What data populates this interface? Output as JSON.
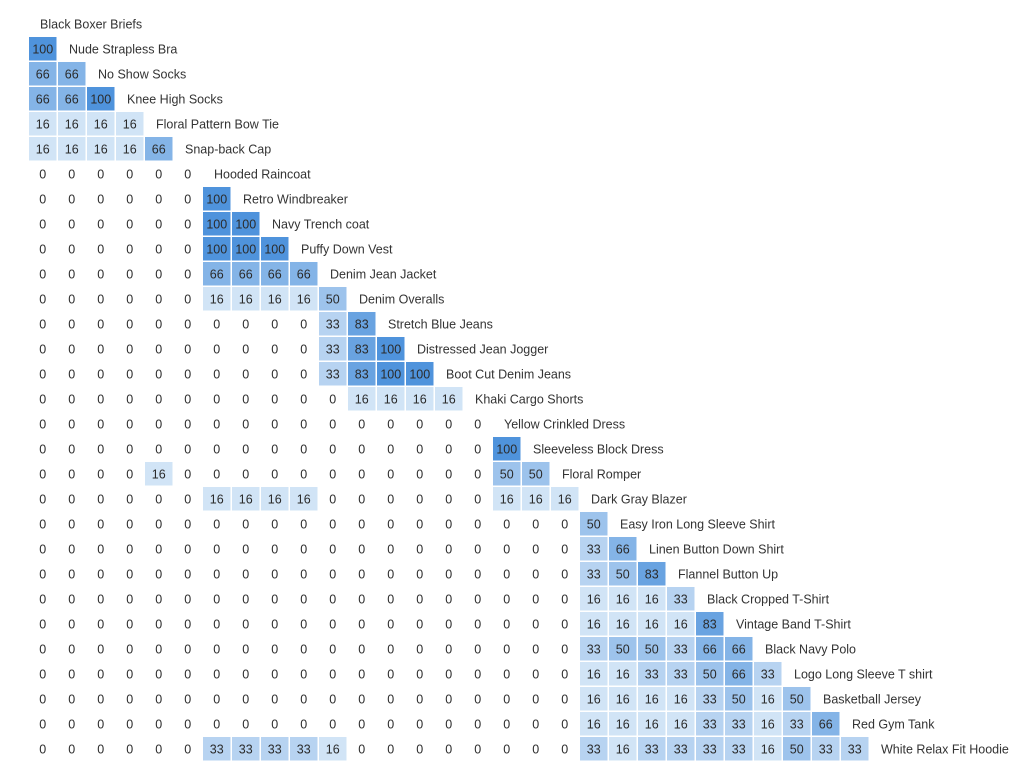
{
  "chart_data": {
    "type": "heatmap",
    "title": "",
    "xlabel": "",
    "ylabel": "",
    "shape": "lower-triangular",
    "range": [
      0,
      100
    ],
    "colors": {
      "low": "#eaf3fb",
      "high": "#4f93dc",
      "zero_bg": "#ffffff",
      "text": "#2b2b2b",
      "label": "#333333"
    },
    "rows": [
      {
        "label": "Black Boxer Briefs",
        "values": []
      },
      {
        "label": "Nude Strapless Bra",
        "values": [
          100
        ]
      },
      {
        "label": "No Show Socks",
        "values": [
          66,
          66
        ]
      },
      {
        "label": "Knee High Socks",
        "values": [
          66,
          66,
          100
        ]
      },
      {
        "label": "Floral Pattern Bow Tie",
        "values": [
          16,
          16,
          16,
          16
        ]
      },
      {
        "label": "Snap-back Cap",
        "values": [
          16,
          16,
          16,
          16,
          66
        ]
      },
      {
        "label": "Hooded Raincoat",
        "values": [
          0,
          0,
          0,
          0,
          0,
          0
        ]
      },
      {
        "label": "Retro Windbreaker",
        "values": [
          0,
          0,
          0,
          0,
          0,
          0,
          100
        ]
      },
      {
        "label": "Navy Trench coat",
        "values": [
          0,
          0,
          0,
          0,
          0,
          0,
          100,
          100
        ]
      },
      {
        "label": "Puffy Down Vest",
        "values": [
          0,
          0,
          0,
          0,
          0,
          0,
          100,
          100,
          100
        ]
      },
      {
        "label": "Denim Jean Jacket",
        "values": [
          0,
          0,
          0,
          0,
          0,
          0,
          66,
          66,
          66,
          66
        ]
      },
      {
        "label": "Denim Overalls",
        "values": [
          0,
          0,
          0,
          0,
          0,
          0,
          16,
          16,
          16,
          16,
          50
        ]
      },
      {
        "label": "Stretch Blue Jeans",
        "values": [
          0,
          0,
          0,
          0,
          0,
          0,
          0,
          0,
          0,
          0,
          33,
          83
        ]
      },
      {
        "label": "Distressed Jean Jogger",
        "values": [
          0,
          0,
          0,
          0,
          0,
          0,
          0,
          0,
          0,
          0,
          33,
          83,
          100
        ]
      },
      {
        "label": "Boot Cut Denim Jeans",
        "values": [
          0,
          0,
          0,
          0,
          0,
          0,
          0,
          0,
          0,
          0,
          33,
          83,
          100,
          100
        ]
      },
      {
        "label": "Khaki Cargo Shorts",
        "values": [
          0,
          0,
          0,
          0,
          0,
          0,
          0,
          0,
          0,
          0,
          0,
          16,
          16,
          16,
          16
        ]
      },
      {
        "label": "Yellow Crinkled Dress",
        "values": [
          0,
          0,
          0,
          0,
          0,
          0,
          0,
          0,
          0,
          0,
          0,
          0,
          0,
          0,
          0,
          0
        ]
      },
      {
        "label": "Sleeveless Block Dress",
        "values": [
          0,
          0,
          0,
          0,
          0,
          0,
          0,
          0,
          0,
          0,
          0,
          0,
          0,
          0,
          0,
          0,
          100
        ]
      },
      {
        "label": "Floral Romper",
        "values": [
          0,
          0,
          0,
          0,
          16,
          0,
          0,
          0,
          0,
          0,
          0,
          0,
          0,
          0,
          0,
          0,
          50,
          50
        ]
      },
      {
        "label": "Dark Gray Blazer",
        "values": [
          0,
          0,
          0,
          0,
          0,
          0,
          16,
          16,
          16,
          16,
          0,
          0,
          0,
          0,
          0,
          0,
          16,
          16,
          16
        ]
      },
      {
        "label": "Easy Iron Long Sleeve Shirt",
        "values": [
          0,
          0,
          0,
          0,
          0,
          0,
          0,
          0,
          0,
          0,
          0,
          0,
          0,
          0,
          0,
          0,
          0,
          0,
          0,
          50
        ]
      },
      {
        "label": "Linen Button Down Shirt",
        "values": [
          0,
          0,
          0,
          0,
          0,
          0,
          0,
          0,
          0,
          0,
          0,
          0,
          0,
          0,
          0,
          0,
          0,
          0,
          0,
          33,
          66
        ]
      },
      {
        "label": "Flannel Button Up",
        "values": [
          0,
          0,
          0,
          0,
          0,
          0,
          0,
          0,
          0,
          0,
          0,
          0,
          0,
          0,
          0,
          0,
          0,
          0,
          0,
          33,
          50,
          83
        ]
      },
      {
        "label": "Black Cropped T-Shirt",
        "values": [
          0,
          0,
          0,
          0,
          0,
          0,
          0,
          0,
          0,
          0,
          0,
          0,
          0,
          0,
          0,
          0,
          0,
          0,
          0,
          16,
          16,
          16,
          33
        ]
      },
      {
        "label": "Vintage Band T-Shirt",
        "values": [
          0,
          0,
          0,
          0,
          0,
          0,
          0,
          0,
          0,
          0,
          0,
          0,
          0,
          0,
          0,
          0,
          0,
          0,
          0,
          16,
          16,
          16,
          16,
          83
        ]
      },
      {
        "label": "Black Navy Polo",
        "values": [
          0,
          0,
          0,
          0,
          0,
          0,
          0,
          0,
          0,
          0,
          0,
          0,
          0,
          0,
          0,
          0,
          0,
          0,
          0,
          33,
          50,
          50,
          33,
          66,
          66
        ]
      },
      {
        "label": "Logo Long Sleeve T shirt",
        "values": [
          0,
          0,
          0,
          0,
          0,
          0,
          0,
          0,
          0,
          0,
          0,
          0,
          0,
          0,
          0,
          0,
          0,
          0,
          0,
          16,
          16,
          33,
          33,
          50,
          66,
          33
        ]
      },
      {
        "label": "Basketball Jersey",
        "values": [
          0,
          0,
          0,
          0,
          0,
          0,
          0,
          0,
          0,
          0,
          0,
          0,
          0,
          0,
          0,
          0,
          0,
          0,
          0,
          16,
          16,
          16,
          16,
          33,
          50,
          16,
          50
        ]
      },
      {
        "label": "Red Gym Tank",
        "values": [
          0,
          0,
          0,
          0,
          0,
          0,
          0,
          0,
          0,
          0,
          0,
          0,
          0,
          0,
          0,
          0,
          0,
          0,
          0,
          16,
          16,
          16,
          16,
          33,
          33,
          16,
          33,
          66
        ]
      },
      {
        "label": "White Relax Fit Hoodie",
        "values": [
          0,
          0,
          0,
          0,
          0,
          0,
          33,
          33,
          33,
          33,
          16,
          0,
          0,
          0,
          0,
          0,
          0,
          0,
          0,
          33,
          16,
          33,
          33,
          33,
          33,
          16,
          50,
          33,
          33
        ]
      }
    ]
  }
}
